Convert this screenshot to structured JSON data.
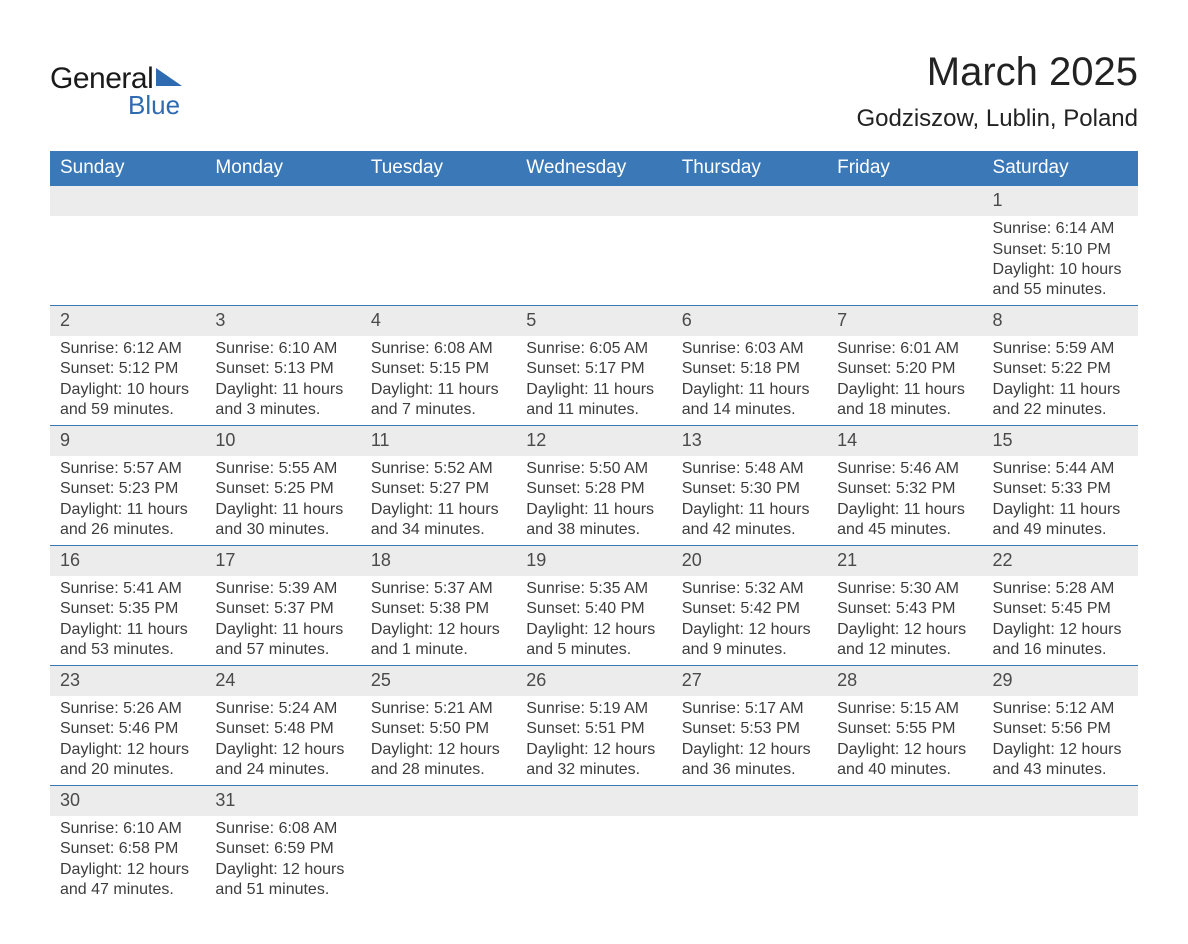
{
  "logo": {
    "line1": "General",
    "line2": "Blue"
  },
  "title": "March 2025",
  "location": "Godziszow, Lublin, Poland",
  "colors": {
    "header_bg": "#3b78b8",
    "header_text": "#ffffff",
    "row_divider": "#3b78b8",
    "daynum_bg": "#ececec",
    "text": "#3d3d3d",
    "logo_accent": "#2e6bb0"
  },
  "day_headers": [
    "Sunday",
    "Monday",
    "Tuesday",
    "Wednesday",
    "Thursday",
    "Friday",
    "Saturday"
  ],
  "weeks": [
    [
      null,
      null,
      null,
      null,
      null,
      null,
      {
        "n": "1",
        "sunrise": "Sunrise: 6:14 AM",
        "sunset": "Sunset: 5:10 PM",
        "day1": "Daylight: 10 hours",
        "day2": "and 55 minutes."
      }
    ],
    [
      {
        "n": "2",
        "sunrise": "Sunrise: 6:12 AM",
        "sunset": "Sunset: 5:12 PM",
        "day1": "Daylight: 10 hours",
        "day2": "and 59 minutes."
      },
      {
        "n": "3",
        "sunrise": "Sunrise: 6:10 AM",
        "sunset": "Sunset: 5:13 PM",
        "day1": "Daylight: 11 hours",
        "day2": "and 3 minutes."
      },
      {
        "n": "4",
        "sunrise": "Sunrise: 6:08 AM",
        "sunset": "Sunset: 5:15 PM",
        "day1": "Daylight: 11 hours",
        "day2": "and 7 minutes."
      },
      {
        "n": "5",
        "sunrise": "Sunrise: 6:05 AM",
        "sunset": "Sunset: 5:17 PM",
        "day1": "Daylight: 11 hours",
        "day2": "and 11 minutes."
      },
      {
        "n": "6",
        "sunrise": "Sunrise: 6:03 AM",
        "sunset": "Sunset: 5:18 PM",
        "day1": "Daylight: 11 hours",
        "day2": "and 14 minutes."
      },
      {
        "n": "7",
        "sunrise": "Sunrise: 6:01 AM",
        "sunset": "Sunset: 5:20 PM",
        "day1": "Daylight: 11 hours",
        "day2": "and 18 minutes."
      },
      {
        "n": "8",
        "sunrise": "Sunrise: 5:59 AM",
        "sunset": "Sunset: 5:22 PM",
        "day1": "Daylight: 11 hours",
        "day2": "and 22 minutes."
      }
    ],
    [
      {
        "n": "9",
        "sunrise": "Sunrise: 5:57 AM",
        "sunset": "Sunset: 5:23 PM",
        "day1": "Daylight: 11 hours",
        "day2": "and 26 minutes."
      },
      {
        "n": "10",
        "sunrise": "Sunrise: 5:55 AM",
        "sunset": "Sunset: 5:25 PM",
        "day1": "Daylight: 11 hours",
        "day2": "and 30 minutes."
      },
      {
        "n": "11",
        "sunrise": "Sunrise: 5:52 AM",
        "sunset": "Sunset: 5:27 PM",
        "day1": "Daylight: 11 hours",
        "day2": "and 34 minutes."
      },
      {
        "n": "12",
        "sunrise": "Sunrise: 5:50 AM",
        "sunset": "Sunset: 5:28 PM",
        "day1": "Daylight: 11 hours",
        "day2": "and 38 minutes."
      },
      {
        "n": "13",
        "sunrise": "Sunrise: 5:48 AM",
        "sunset": "Sunset: 5:30 PM",
        "day1": "Daylight: 11 hours",
        "day2": "and 42 minutes."
      },
      {
        "n": "14",
        "sunrise": "Sunrise: 5:46 AM",
        "sunset": "Sunset: 5:32 PM",
        "day1": "Daylight: 11 hours",
        "day2": "and 45 minutes."
      },
      {
        "n": "15",
        "sunrise": "Sunrise: 5:44 AM",
        "sunset": "Sunset: 5:33 PM",
        "day1": "Daylight: 11 hours",
        "day2": "and 49 minutes."
      }
    ],
    [
      {
        "n": "16",
        "sunrise": "Sunrise: 5:41 AM",
        "sunset": "Sunset: 5:35 PM",
        "day1": "Daylight: 11 hours",
        "day2": "and 53 minutes."
      },
      {
        "n": "17",
        "sunrise": "Sunrise: 5:39 AM",
        "sunset": "Sunset: 5:37 PM",
        "day1": "Daylight: 11 hours",
        "day2": "and 57 minutes."
      },
      {
        "n": "18",
        "sunrise": "Sunrise: 5:37 AM",
        "sunset": "Sunset: 5:38 PM",
        "day1": "Daylight: 12 hours",
        "day2": "and 1 minute."
      },
      {
        "n": "19",
        "sunrise": "Sunrise: 5:35 AM",
        "sunset": "Sunset: 5:40 PM",
        "day1": "Daylight: 12 hours",
        "day2": "and 5 minutes."
      },
      {
        "n": "20",
        "sunrise": "Sunrise: 5:32 AM",
        "sunset": "Sunset: 5:42 PM",
        "day1": "Daylight: 12 hours",
        "day2": "and 9 minutes."
      },
      {
        "n": "21",
        "sunrise": "Sunrise: 5:30 AM",
        "sunset": "Sunset: 5:43 PM",
        "day1": "Daylight: 12 hours",
        "day2": "and 12 minutes."
      },
      {
        "n": "22",
        "sunrise": "Sunrise: 5:28 AM",
        "sunset": "Sunset: 5:45 PM",
        "day1": "Daylight: 12 hours",
        "day2": "and 16 minutes."
      }
    ],
    [
      {
        "n": "23",
        "sunrise": "Sunrise: 5:26 AM",
        "sunset": "Sunset: 5:46 PM",
        "day1": "Daylight: 12 hours",
        "day2": "and 20 minutes."
      },
      {
        "n": "24",
        "sunrise": "Sunrise: 5:24 AM",
        "sunset": "Sunset: 5:48 PM",
        "day1": "Daylight: 12 hours",
        "day2": "and 24 minutes."
      },
      {
        "n": "25",
        "sunrise": "Sunrise: 5:21 AM",
        "sunset": "Sunset: 5:50 PM",
        "day1": "Daylight: 12 hours",
        "day2": "and 28 minutes."
      },
      {
        "n": "26",
        "sunrise": "Sunrise: 5:19 AM",
        "sunset": "Sunset: 5:51 PM",
        "day1": "Daylight: 12 hours",
        "day2": "and 32 minutes."
      },
      {
        "n": "27",
        "sunrise": "Sunrise: 5:17 AM",
        "sunset": "Sunset: 5:53 PM",
        "day1": "Daylight: 12 hours",
        "day2": "and 36 minutes."
      },
      {
        "n": "28",
        "sunrise": "Sunrise: 5:15 AM",
        "sunset": "Sunset: 5:55 PM",
        "day1": "Daylight: 12 hours",
        "day2": "and 40 minutes."
      },
      {
        "n": "29",
        "sunrise": "Sunrise: 5:12 AM",
        "sunset": "Sunset: 5:56 PM",
        "day1": "Daylight: 12 hours",
        "day2": "and 43 minutes."
      }
    ],
    [
      {
        "n": "30",
        "sunrise": "Sunrise: 6:10 AM",
        "sunset": "Sunset: 6:58 PM",
        "day1": "Daylight: 12 hours",
        "day2": "and 47 minutes."
      },
      {
        "n": "31",
        "sunrise": "Sunrise: 6:08 AM",
        "sunset": "Sunset: 6:59 PM",
        "day1": "Daylight: 12 hours",
        "day2": "and 51 minutes."
      },
      null,
      null,
      null,
      null,
      null
    ]
  ]
}
